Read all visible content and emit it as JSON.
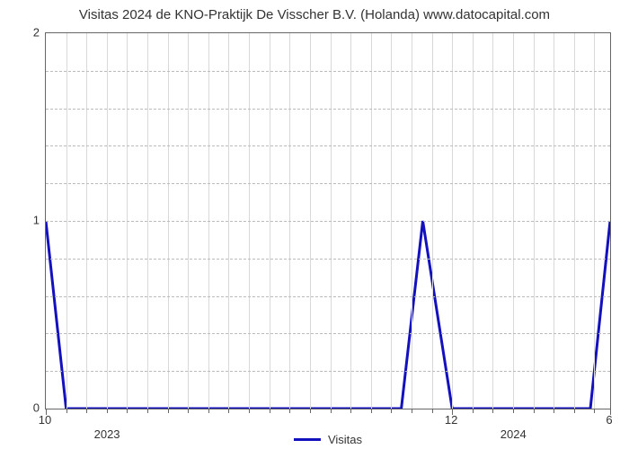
{
  "chart": {
    "type": "line",
    "title": "Visitas 2024 de KNO-Praktijk De Visscher B.V. (Holanda) www.datocapital.com",
    "title_fontsize": 15,
    "background_color": "#ffffff",
    "line_color": "#1310be",
    "line_width": 3,
    "grid_color": "#d9d9d9",
    "dash_color": "#bbbbbb",
    "border_color": "#666666",
    "ylim": [
      0,
      2
    ],
    "y_ticks": [
      0,
      1,
      2
    ],
    "y_dashed_count": 8,
    "x_major": [
      {
        "x": 0.0,
        "label": "10"
      },
      {
        "x": 0.72,
        "label": "12"
      },
      {
        "x": 1.0,
        "label": "6"
      }
    ],
    "x_year": [
      {
        "x": 0.11,
        "label": "2023"
      },
      {
        "x": 0.83,
        "label": "2024"
      }
    ],
    "x_minor": [
      0.036,
      0.072,
      0.108,
      0.144,
      0.18,
      0.216,
      0.252,
      0.288,
      0.324,
      0.36,
      0.396,
      0.432,
      0.468,
      0.504,
      0.54,
      0.576,
      0.612,
      0.648,
      0.684,
      0.756,
      0.792,
      0.828,
      0.864,
      0.9,
      0.936,
      0.972
    ],
    "series": {
      "label": "Visitas",
      "points": [
        {
          "x": 0.0,
          "y": 1.0
        },
        {
          "x": 0.036,
          "y": 0.0
        },
        {
          "x": 0.63,
          "y": 0.0
        },
        {
          "x": 0.668,
          "y": 1.0
        },
        {
          "x": 0.72,
          "y": 0.0
        },
        {
          "x": 0.965,
          "y": 0.0
        },
        {
          "x": 1.0,
          "y": 1.0
        }
      ]
    },
    "legend_label": "Visitas"
  }
}
